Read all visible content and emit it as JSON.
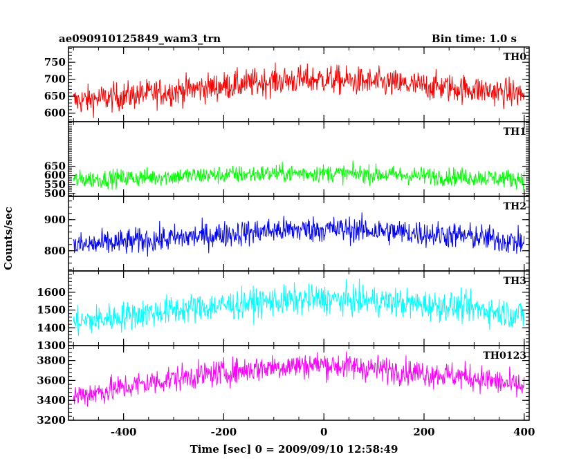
{
  "header": {
    "title": "ae090910125849_wam3_trn",
    "bin_time": "Bin time: 1.0 s"
  },
  "chart_data": {
    "type": "line",
    "ylabel": "Counts/sec",
    "xlabel": "Time [sec] 0 = 2009/09/10 12:58:49",
    "xlim": [
      -510,
      410
    ],
    "x_ticks": [
      -400,
      -200,
      0,
      200,
      400
    ],
    "grid": false,
    "panels": [
      {
        "name": "TH0",
        "color": "#ff0000",
        "ylim": [
          575,
          795
        ],
        "y_ticks": [
          600,
          650,
          700,
          750
        ],
        "trend": [
          [
            -500,
            635
          ],
          [
            -300,
            665
          ],
          [
            -100,
            695
          ],
          [
            0,
            700
          ],
          [
            100,
            690
          ],
          [
            300,
            670
          ],
          [
            400,
            655
          ]
        ],
        "noise": 38
      },
      {
        "name": "TH1",
        "color": "#00ff00",
        "ylim": [
          485,
          895
        ],
        "y_ticks": [
          500,
          550,
          600,
          650
        ],
        "trend": [
          [
            -500,
            575
          ],
          [
            -300,
            595
          ],
          [
            -100,
            610
          ],
          [
            0,
            612
          ],
          [
            100,
            605
          ],
          [
            300,
            590
          ],
          [
            400,
            580
          ]
        ],
        "noise": 45
      },
      {
        "name": "TH2",
        "color": "#0000ff",
        "ylim": [
          735,
          975
        ],
        "y_ticks": [
          800,
          900
        ],
        "trend": [
          [
            -500,
            815
          ],
          [
            -300,
            840
          ],
          [
            -100,
            865
          ],
          [
            0,
            870
          ],
          [
            100,
            865
          ],
          [
            300,
            845
          ],
          [
            400,
            825
          ]
        ],
        "noise": 38
      },
      {
        "name": "TH3",
        "color": "#00ffff",
        "ylim": [
          1300,
          1720
        ],
        "y_ticks": [
          1300,
          1400,
          1500,
          1600
        ],
        "trend": [
          [
            -500,
            1430
          ],
          [
            -300,
            1500
          ],
          [
            -100,
            1550
          ],
          [
            0,
            1560
          ],
          [
            100,
            1550
          ],
          [
            300,
            1510
          ],
          [
            400,
            1470
          ]
        ],
        "noise": 75
      },
      {
        "name": "TH0123",
        "color": "#ff00ff",
        "ylim": [
          3200,
          3950
        ],
        "y_ticks": [
          3200,
          3400,
          3600,
          3800
        ],
        "trend": [
          [
            -500,
            3440
          ],
          [
            -300,
            3620
          ],
          [
            -100,
            3740
          ],
          [
            0,
            3760
          ],
          [
            100,
            3720
          ],
          [
            300,
            3630
          ],
          [
            400,
            3530
          ]
        ],
        "noise": 120
      }
    ]
  }
}
